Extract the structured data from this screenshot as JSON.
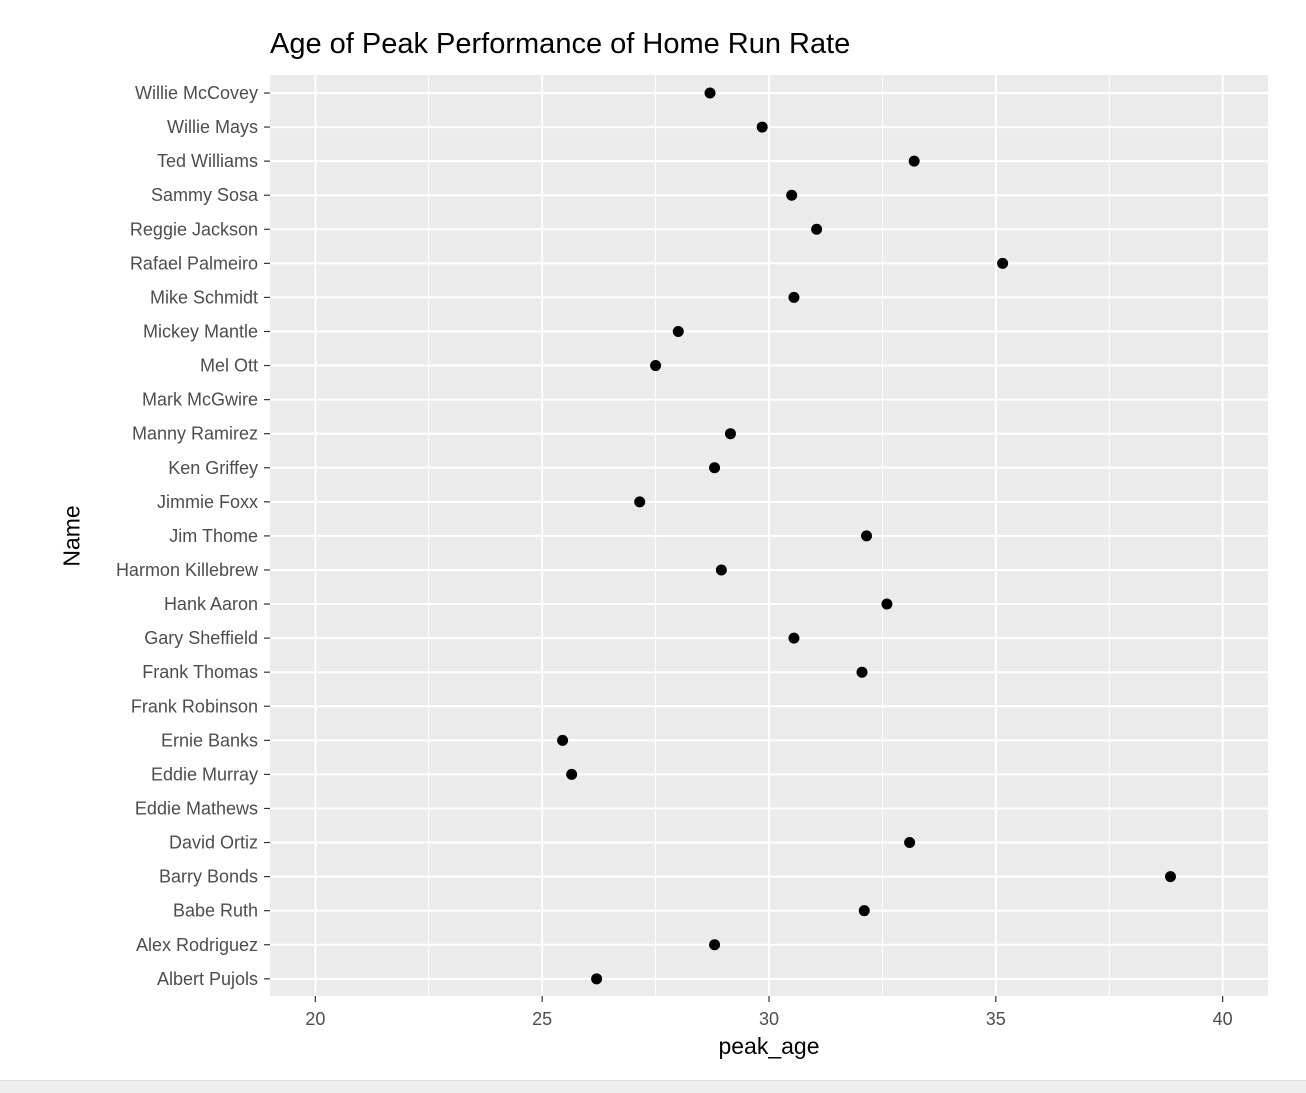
{
  "chart_data": {
    "type": "scatter",
    "title": "Age of Peak Performance of Home Run Rate",
    "xlabel": "peak_age",
    "ylabel": "Name",
    "xlim": [
      19,
      41
    ],
    "x_ticks": [
      20,
      25,
      30,
      35,
      40
    ],
    "grid": true,
    "legend": "none",
    "point_color": "#000000",
    "panel_background": "#ebebeb",
    "grid_color": "#ffffff",
    "axis_text_color": "#4d4d4d",
    "categories": [
      "Willie McCovey",
      "Willie Mays",
      "Ted Williams",
      "Sammy Sosa",
      "Reggie Jackson",
      "Rafael Palmeiro",
      "Mike Schmidt",
      "Mickey Mantle",
      "Mel Ott",
      "Mark McGwire",
      "Manny Ramirez",
      "Ken Griffey",
      "Jimmie Foxx",
      "Jim Thome",
      "Harmon Killebrew",
      "Hank Aaron",
      "Gary Sheffield",
      "Frank Thomas",
      "Frank Robinson",
      "Ernie Banks",
      "Eddie Murray",
      "Eddie Mathews",
      "David Ortiz",
      "Barry Bonds",
      "Babe Ruth",
      "Alex Rodriguez",
      "Albert Pujols"
    ],
    "values": [
      28.7,
      29.85,
      33.2,
      30.5,
      31.05,
      35.15,
      30.55,
      28.0,
      27.5,
      null,
      29.15,
      28.8,
      27.15,
      32.15,
      28.95,
      32.6,
      30.55,
      32.05,
      null,
      25.45,
      25.65,
      null,
      33.1,
      38.85,
      32.1,
      28.8,
      26.2
    ]
  }
}
